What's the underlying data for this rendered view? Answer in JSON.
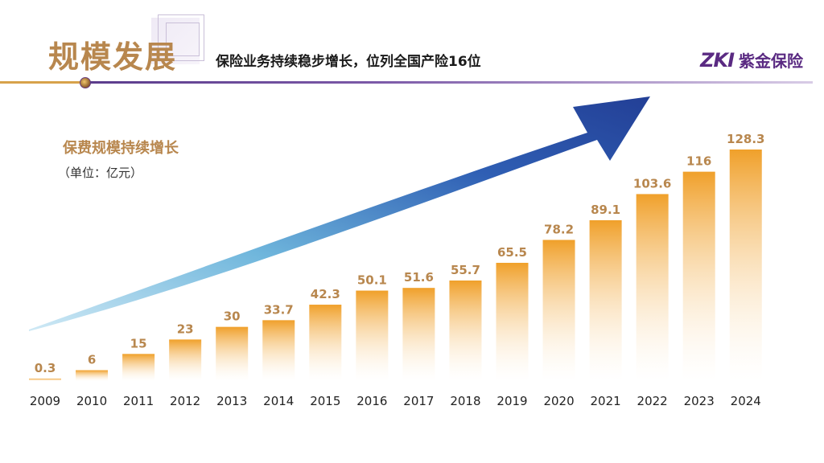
{
  "header": {
    "title": "规模发展",
    "subtitle": "保险业务持续稳步增长，位列全国产险16位",
    "logo_mark": "ZKI",
    "logo_text": "紫金保险"
  },
  "chart_heading": "保费规模持续增长",
  "chart_unit": "（单位：亿元）",
  "colors": {
    "bar_top": "#f0a02a",
    "bar_bottom": "#ffffff",
    "title_gold": "#b8874e",
    "arrow_dark": "#2a48a0",
    "arrow_light": "#7ec8e6"
  },
  "chart_data": {
    "type": "bar",
    "title": "保费规模持续增长",
    "ylabel": "亿元",
    "xlabel": "",
    "categories": [
      "2009",
      "2010",
      "2011",
      "2012",
      "2013",
      "2014",
      "2015",
      "2016",
      "2017",
      "2018",
      "2019",
      "2020",
      "2021",
      "2022",
      "2023",
      "2024"
    ],
    "values": [
      0.3,
      6,
      15,
      23,
      30,
      33.7,
      42.3,
      50.1,
      51.6,
      55.7,
      65.5,
      78.2,
      89.1,
      103.6,
      116,
      128.3
    ],
    "value_labels": [
      "0.3",
      "6",
      "15",
      "23",
      "30",
      "33.7",
      "42.3",
      "50.1",
      "51.6",
      "55.7",
      "65.5",
      "78.2",
      "89.1",
      "103.6",
      "116",
      "128.3"
    ],
    "ylim": [
      0,
      140
    ],
    "grid": false,
    "legend": "none"
  }
}
